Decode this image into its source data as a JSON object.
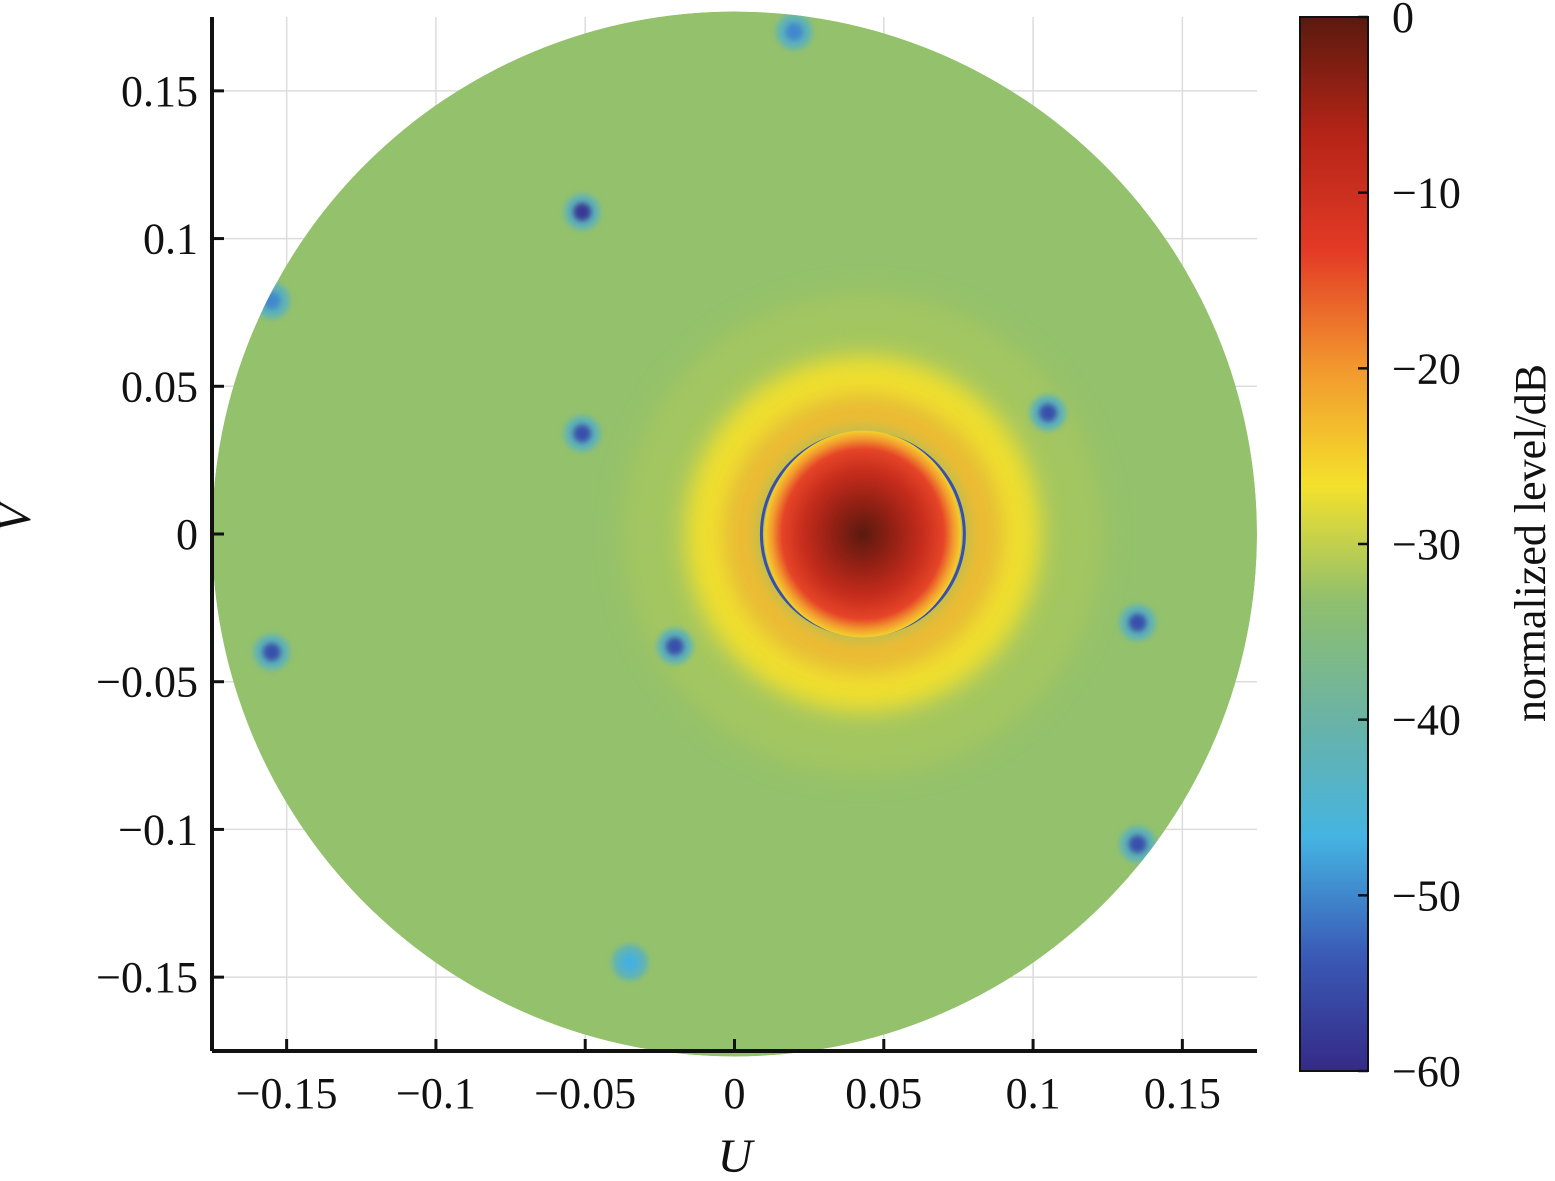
{
  "chart_data": {
    "type": "heatmap",
    "title": "",
    "xlabel": "U",
    "ylabel": "V",
    "xlim": [
      -0.175,
      0.175
    ],
    "ylim": [
      -0.175,
      0.175
    ],
    "xticks": [
      -0.15,
      -0.1,
      -0.05,
      0,
      0.05,
      0.1,
      0.15
    ],
    "xtick_labels": [
      "−0.15",
      "−0.1",
      "−0.05",
      "0",
      "0.05",
      "0.1",
      "0.15"
    ],
    "yticks": [
      0.15,
      0.1,
      0.05,
      0,
      -0.05,
      -0.1,
      -0.15
    ],
    "ytick_labels": [
      "0.15",
      "0.1",
      "0.05",
      "0",
      "−0.05",
      "−0.1",
      "−0.15"
    ],
    "grid": true,
    "domain": {
      "shape": "circle",
      "center": [
        0,
        0
      ],
      "radius": 0.175
    },
    "main_beam": {
      "u": 0.043,
      "v": 0.0,
      "peak_db": 0,
      "first_null_radius": 0.033
    },
    "background_level_db": -33,
    "nulls": [
      {
        "u": -0.051,
        "v": 0.109,
        "db": -58
      },
      {
        "u": -0.155,
        "v": 0.079,
        "db": -50
      },
      {
        "u": -0.051,
        "v": 0.034,
        "db": -55
      },
      {
        "u": -0.155,
        "v": -0.04,
        "db": -55
      },
      {
        "u": -0.02,
        "v": -0.038,
        "db": -55
      },
      {
        "u": 0.105,
        "v": 0.041,
        "db": -55
      },
      {
        "u": 0.135,
        "v": -0.03,
        "db": -55
      },
      {
        "u": 0.135,
        "v": -0.105,
        "db": -55
      },
      {
        "u": -0.035,
        "v": -0.145,
        "db": -47
      },
      {
        "u": 0.02,
        "v": 0.17,
        "db": -50
      }
    ],
    "colorbar": {
      "label": "normalized level/dB",
      "range": [
        -60,
        0
      ],
      "ticks": [
        0,
        -10,
        -20,
        -30,
        -40,
        -50,
        -60
      ],
      "tick_labels": [
        "0",
        "−10",
        "−20",
        "−30",
        "−40",
        "−50",
        "−60"
      ],
      "colormap": [
        "#352a87",
        "#3a5bb7",
        "#45b4e2",
        "#6ab3a5",
        "#8fbf6e",
        "#f4e12c",
        "#f2982e",
        "#e33b26",
        "#b52417",
        "#5a1a0f"
      ]
    }
  }
}
